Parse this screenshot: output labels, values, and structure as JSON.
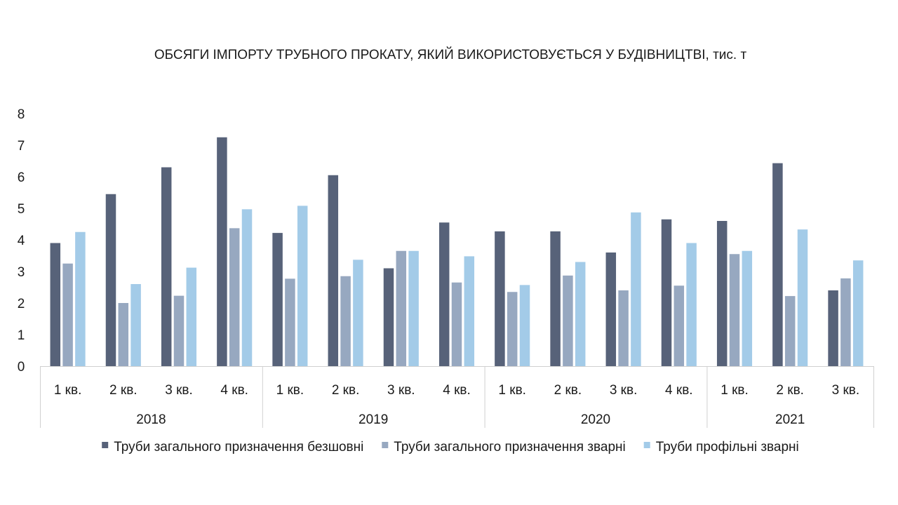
{
  "chart_data": {
    "type": "bar",
    "title": "ОБСЯГИ ІМПОРТУ ТРУБНОГО ПРОКАТУ, ЯКИЙ ВИКОРИСТОВУЄТЬСЯ У БУДІВНИЦТВІ, тис. т",
    "xlabel": "",
    "ylabel": "",
    "ylim": [
      0,
      8
    ],
    "yticks": [
      "0",
      "1",
      "2",
      "3",
      "4",
      "5",
      "6",
      "7",
      "8"
    ],
    "grid": false,
    "legend_position": "bottom",
    "groups": [
      {
        "label": "2018",
        "categories": [
          "1 кв.",
          "2 кв.",
          "3 кв.",
          "4 кв."
        ]
      },
      {
        "label": "2019",
        "categories": [
          "1 кв.",
          "2 кв.",
          "3 кв.",
          "4 кв."
        ]
      },
      {
        "label": "2020",
        "categories": [
          "1 кв.",
          "2 кв.",
          "3 кв.",
          "4 кв."
        ]
      },
      {
        "label": "2021",
        "categories": [
          "1 кв.",
          "2 кв.",
          "3 кв."
        ]
      }
    ],
    "series": [
      {
        "name": "Труби загального призначення безшовні",
        "color": "#576279",
        "values": [
          3.9,
          5.45,
          6.3,
          7.25,
          4.22,
          6.05,
          3.1,
          4.55,
          4.27,
          4.27,
          3.6,
          4.65,
          4.6,
          6.43,
          2.4
        ]
      },
      {
        "name": "Труби загального призначення зварні",
        "color": "#97a8c0",
        "values": [
          3.25,
          2.0,
          2.23,
          4.37,
          2.77,
          2.85,
          3.65,
          2.65,
          2.35,
          2.87,
          2.4,
          2.55,
          3.55,
          2.22,
          2.78
        ]
      },
      {
        "name": "Труби профільні зварні",
        "color": "#a3cbe8",
        "values": [
          4.25,
          2.6,
          3.12,
          4.97,
          5.08,
          3.37,
          3.65,
          3.48,
          2.57,
          3.3,
          4.87,
          3.9,
          3.65,
          4.33,
          3.35
        ]
      }
    ]
  }
}
